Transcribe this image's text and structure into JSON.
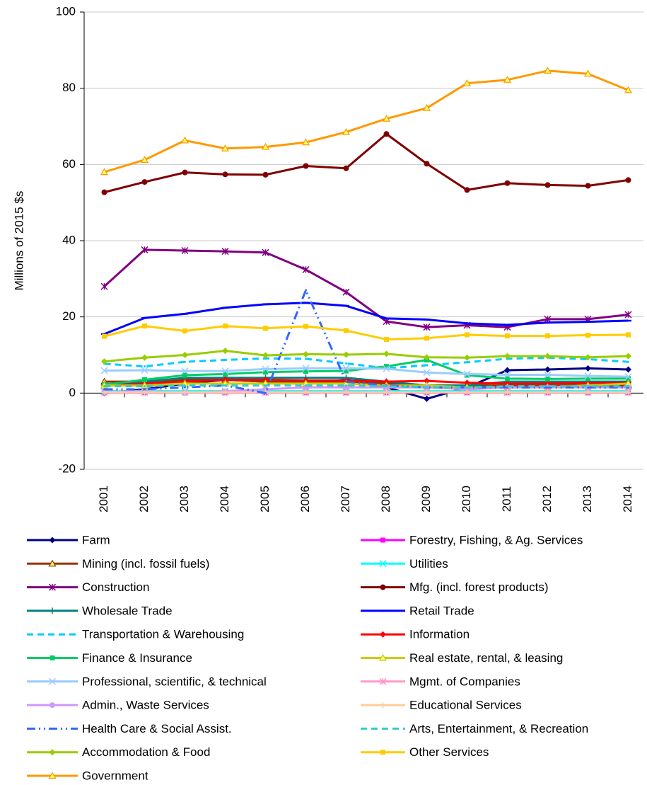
{
  "chart_data": {
    "type": "line",
    "y_label": "Millions of 2015 $s",
    "categories": [
      "2001",
      "2002",
      "2003",
      "2004",
      "2005",
      "2006",
      "2007",
      "2008",
      "2009",
      "2010",
      "2011",
      "2012",
      "2013",
      "2014"
    ],
    "ylim": [
      -20,
      100
    ],
    "yticks": [
      -20,
      0,
      20,
      40,
      60,
      80,
      100
    ],
    "grid": true,
    "series": [
      {
        "name": "Farm",
        "color": "#000080",
        "marker": "diamond",
        "dash": "solid",
        "values": [
          0,
          1,
          2.5,
          3.5,
          3,
          2.5,
          3.5,
          1.5,
          -1.5,
          1.5,
          6,
          6.2,
          6.5,
          6.2
        ]
      },
      {
        "name": "Forestry, Fishing, & Ag. Services",
        "color": "#ff00ff",
        "marker": "square",
        "dash": "solid",
        "values": [
          0.1,
          0.1,
          0.1,
          0.1,
          0.1,
          0.1,
          0.1,
          0.1,
          0.1,
          0.1,
          0.1,
          0.1,
          0.1,
          0.1
        ]
      },
      {
        "name": "Mining (incl. fossil fuels)",
        "color": "#993300",
        "marker": "triangle",
        "dash": "solid",
        "values": [
          3,
          3,
          3.5,
          3.5,
          3,
          3,
          3,
          2.5,
          2,
          2,
          2,
          2,
          2,
          2
        ]
      },
      {
        "name": "Utilities",
        "color": "#00ffff",
        "marker": "x",
        "dash": "solid",
        "values": [
          0.5,
          0.5,
          0.5,
          0.5,
          0.5,
          0.5,
          0.5,
          0.5,
          0.5,
          0.5,
          0.5,
          0.5,
          0.5,
          0.5
        ]
      },
      {
        "name": "Construction",
        "color": "#800080",
        "marker": "star",
        "dash": "solid",
        "values": [
          28,
          37.6,
          37.4,
          37.2,
          36.9,
          32.4,
          26.5,
          18.8,
          17.3,
          17.8,
          17.3,
          19.4,
          19.4,
          20.6
        ]
      },
      {
        "name": "Mfg. (incl. forest products)",
        "color": "#800000",
        "marker": "circle",
        "dash": "solid",
        "values": [
          52.7,
          55.4,
          57.9,
          57.4,
          57.3,
          59.6,
          59,
          68,
          60.2,
          53.3,
          55.1,
          54.6,
          54.4,
          55.9
        ]
      },
      {
        "name": "Wholesale Trade",
        "color": "#008080",
        "marker": "plus",
        "dash": "solid",
        "values": [
          2.3,
          3,
          4,
          4,
          4,
          4,
          4,
          3,
          2,
          2,
          3,
          3,
          3,
          3
        ]
      },
      {
        "name": "Retail Trade",
        "color": "#0000ff",
        "marker": "dash",
        "dash": "solid",
        "values": [
          15.5,
          19.7,
          20.8,
          22.4,
          23.3,
          23.7,
          22.9,
          19.6,
          19.3,
          18.3,
          17.9,
          18.5,
          18.7,
          19
        ]
      },
      {
        "name": "Transportation & Warehousing",
        "color": "#00ccff",
        "marker": "none",
        "dash": "dashed",
        "values": [
          7.7,
          7,
          8.2,
          8.7,
          9.1,
          9,
          7.8,
          6.5,
          7.3,
          8.1,
          9,
          9.3,
          8.9,
          8.2
        ]
      },
      {
        "name": "Information",
        "color": "#ff0000",
        "marker": "diamond",
        "dash": "solid",
        "values": [
          2,
          2.5,
          3,
          3.5,
          3.5,
          3.3,
          3.3,
          3,
          3.2,
          2.7,
          2.5,
          2.5,
          2.6,
          2.7
        ]
      },
      {
        "name": "Finance & Insurance",
        "color": "#00cc66",
        "marker": "square",
        "dash": "solid",
        "values": [
          2.2,
          3.5,
          4.7,
          5,
          5.5,
          5.7,
          5.8,
          7,
          8.7,
          4.7,
          3.8,
          3.7,
          3.8,
          3.8
        ]
      },
      {
        "name": "Real estate, rental, & leasing",
        "color": "#cccc00",
        "marker": "triangle",
        "dash": "solid",
        "values": [
          2,
          2,
          2.5,
          2.5,
          2.5,
          2.5,
          2.5,
          2,
          2,
          1.5,
          1.5,
          1.5,
          2,
          2.5
        ]
      },
      {
        "name": "Professional, scientific, & technical",
        "color": "#99ccff",
        "marker": "x",
        "dash": "solid",
        "values": [
          5.9,
          6,
          5.8,
          5.8,
          6.3,
          6.5,
          6.5,
          6.4,
          5.4,
          5,
          4.8,
          4.8,
          4.5,
          4.3
        ]
      },
      {
        "name": "Mgmt. of Companies",
        "color": "#ff99cc",
        "marker": "star",
        "dash": "solid",
        "values": [
          0.2,
          0.2,
          0.2,
          0.2,
          0.2,
          0.2,
          0.2,
          0.2,
          0.2,
          0.2,
          0.2,
          0.2,
          0.2,
          0.2
        ]
      },
      {
        "name": "Admin., Waste Services",
        "color": "#cc99ff",
        "marker": "circle",
        "dash": "solid",
        "values": [
          0.3,
          0.5,
          0,
          0.5,
          1,
          1.5,
          1.5,
          1.5,
          1.5,
          1,
          1.5,
          1.5,
          1.5,
          1.5
        ]
      },
      {
        "name": "Educational Services",
        "color": "#ffcc99",
        "marker": "plus",
        "dash": "solid",
        "values": [
          0.2,
          0.2,
          0.2,
          0.2,
          0.2,
          0.2,
          0.2,
          0.2,
          0.2,
          0.2,
          0.2,
          0.2,
          0.2,
          0.2
        ]
      },
      {
        "name": "Health Care & Social Assist.",
        "color": "#3366ff",
        "marker": "none",
        "dash": "dashdot",
        "values": [
          1,
          1,
          1.5,
          2,
          0,
          27,
          3,
          2,
          1.5,
          1.5,
          1.5,
          1.5,
          1.5,
          1.5
        ]
      },
      {
        "name": "Arts, Entertainment, & Recreation",
        "color": "#33cccc",
        "marker": "none",
        "dash": "dashed",
        "values": [
          1.8,
          1.8,
          2,
          2,
          2,
          2,
          2,
          1.8,
          1.5,
          1.5,
          1.8,
          1.8,
          1.8,
          1.8
        ]
      },
      {
        "name": "Accommodation & Food",
        "color": "#99cc00",
        "marker": "diamond",
        "dash": "solid",
        "values": [
          8.3,
          9.3,
          10,
          11.1,
          9.9,
          10.2,
          10.1,
          10.3,
          9.4,
          9.3,
          9.7,
          9.7,
          9.4,
          9.7
        ]
      },
      {
        "name": "Other Services",
        "color": "#ffcc00",
        "marker": "square",
        "dash": "solid",
        "values": [
          14.9,
          17.6,
          16.3,
          17.6,
          17,
          17.5,
          16.4,
          14.1,
          14.4,
          15.3,
          15,
          15,
          15.2,
          15.3
        ]
      },
      {
        "name": "Government",
        "color": "#ff9900",
        "marker": "triangle",
        "dash": "solid",
        "values": [
          58,
          61.2,
          66.3,
          64.2,
          64.6,
          65.8,
          68.5,
          72,
          74.8,
          81.3,
          82.2,
          84.6,
          83.8,
          79.5
        ]
      }
    ]
  }
}
